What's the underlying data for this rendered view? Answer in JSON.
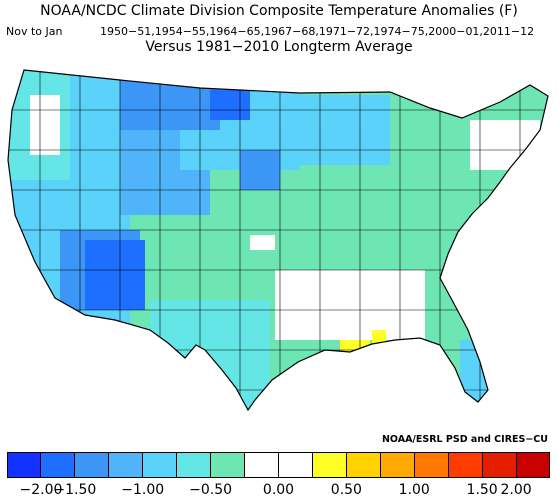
{
  "header": {
    "title": "NOAA/NCDC Climate Division Composite Temperature Anomalies (F)",
    "period": "Nov to Jan",
    "seasons": "1950−51,1954−55,1964−65,1967−68,1971−72,1974−75,2000−01,2011−12",
    "versus": "Versus 1981−2010 Longterm Average"
  },
  "credit": "NOAA/ESRL PSD and CIRES−CU",
  "colorbar": {
    "colors": [
      "#1432ff",
      "#1e6eff",
      "#3c96f5",
      "#50b4fa",
      "#5ad2fa",
      "#64e6e6",
      "#6ee6b4",
      "#ffffff",
      "#ffffff",
      "#ffff28",
      "#ffd200",
      "#ffaa00",
      "#ff7800",
      "#ff3c00",
      "#e61e00",
      "#c80000"
    ],
    "ticks": [
      "−2.00",
      "−1.50",
      "−1.00",
      "−0.50",
      "0.00",
      "0.50",
      "1.00",
      "1.50",
      "2.00"
    ]
  }
}
